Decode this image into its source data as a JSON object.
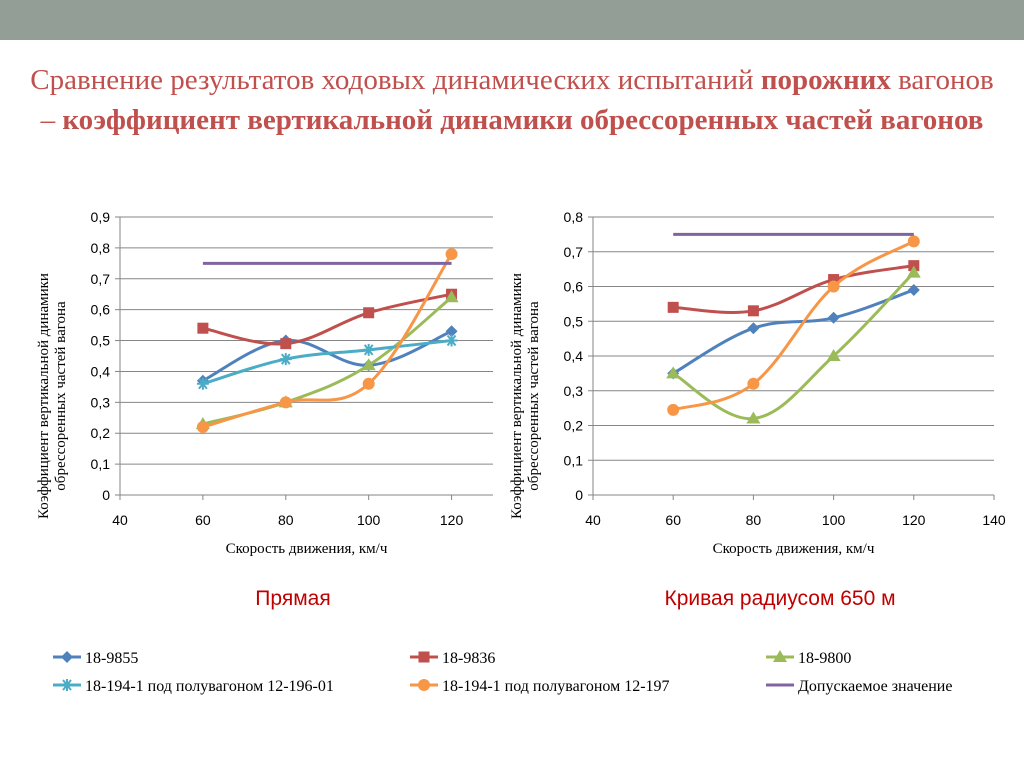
{
  "slide": {
    "title_parts": [
      {
        "text": "Сравнение результатов ходовых динамических испытаний ",
        "bold": false
      },
      {
        "text": "порожних",
        "bold": true
      },
      {
        "text": " вагонов – ",
        "bold": false
      },
      {
        "text": "коэффициент вертикальной динамики обрессоренных частей вагонов",
        "bold": true
      }
    ],
    "colors": {
      "topbar": "#939e97",
      "title": "#c0504d",
      "caption": "#c00000"
    }
  },
  "captions": {
    "left": "Прямая",
    "right": "Кривая радиусом 650 м"
  },
  "series_styles": [
    {
      "key": "s9855",
      "label": "18-9855",
      "color": "#4f81bd",
      "marker": "diamond"
    },
    {
      "key": "s9836",
      "label": "18-9836",
      "color": "#c0504d",
      "marker": "square"
    },
    {
      "key": "s9800",
      "label": "18-9800",
      "color": "#9bbb59",
      "marker": "triangle"
    },
    {
      "key": "s19401",
      "label": "18-194-1 под полувагоном 12-196-01",
      "color": "#4bacc6",
      "marker": "star"
    },
    {
      "key": "s194",
      "label": "18-194-1 под полувагоном 12-197",
      "color": "#f79646",
      "marker": "circle"
    },
    {
      "key": "limit",
      "label": "Допускаемое значение",
      "color": "#8064a2",
      "marker": "none"
    }
  ],
  "chart_data": [
    {
      "type": "line",
      "caption": "Прямая",
      "xlabel": "Скорость движения, км/ч",
      "ylabel_lines": [
        "Коэффициент вертикальной динамики",
        "обрессоренных частей вагона"
      ],
      "xlim": [
        40,
        130
      ],
      "xticks": [
        40,
        60,
        80,
        100,
        120
      ],
      "ylim": [
        0,
        0.9
      ],
      "yticks": [
        "0",
        "0,1",
        "0,2",
        "0,3",
        "0,4",
        "0,5",
        "0,6",
        "0,7",
        "0,8",
        "0,9"
      ],
      "grid": true,
      "series": [
        {
          "name": "18-9855",
          "x": [
            60,
            80,
            100,
            120
          ],
          "y": [
            0.37,
            0.5,
            0.42,
            0.53
          ]
        },
        {
          "name": "18-9836",
          "x": [
            60,
            80,
            100,
            120
          ],
          "y": [
            0.54,
            0.49,
            0.59,
            0.65
          ]
        },
        {
          "name": "18-9800",
          "x": [
            60,
            80,
            100,
            120
          ],
          "y": [
            0.23,
            0.3,
            0.42,
            0.64
          ]
        },
        {
          "name": "18-194-1 под полувагоном 12-196-01",
          "x": [
            60,
            80,
            100,
            120
          ],
          "y": [
            0.36,
            0.44,
            0.47,
            0.5
          ]
        },
        {
          "name": "18-194-1 под полувагоном 12-197",
          "x": [
            60,
            80,
            100,
            120
          ],
          "y": [
            0.22,
            0.3,
            0.36,
            0.78
          ]
        },
        {
          "name": "Допускаемое значение",
          "x": [
            60,
            120
          ],
          "y": [
            0.75,
            0.75
          ]
        }
      ]
    },
    {
      "type": "line",
      "caption": "Кривая радиусом 650 м",
      "xlabel": "Скорость движения, км/ч",
      "ylabel_lines": [
        "Коэффициент вертикальной динамики",
        "обрессоренных частей вагона"
      ],
      "xlim": [
        40,
        140
      ],
      "xticks": [
        40,
        60,
        80,
        100,
        120,
        140
      ],
      "ylim": [
        0,
        0.8
      ],
      "yticks": [
        "0",
        "0,1",
        "0,2",
        "0,3",
        "0,4",
        "0,5",
        "0,6",
        "0,7",
        "0,8"
      ],
      "grid": true,
      "series": [
        {
          "name": "18-9855",
          "x": [
            60,
            80,
            100,
            120
          ],
          "y": [
            0.35,
            0.48,
            0.51,
            0.59
          ]
        },
        {
          "name": "18-9836",
          "x": [
            60,
            80,
            100,
            120
          ],
          "y": [
            0.54,
            0.53,
            0.62,
            0.66
          ]
        },
        {
          "name": "18-9800",
          "x": [
            60,
            80,
            100,
            120
          ],
          "y": [
            0.35,
            0.22,
            0.4,
            0.64
          ]
        },
        {
          "name": "18-194-1 под полувагоном 12-197",
          "x": [
            60,
            80,
            100,
            120
          ],
          "y": [
            0.245,
            0.32,
            0.6,
            0.73
          ]
        },
        {
          "name": "Допускаемое значение",
          "x": [
            60,
            120
          ],
          "y": [
            0.75,
            0.75
          ]
        }
      ]
    }
  ]
}
